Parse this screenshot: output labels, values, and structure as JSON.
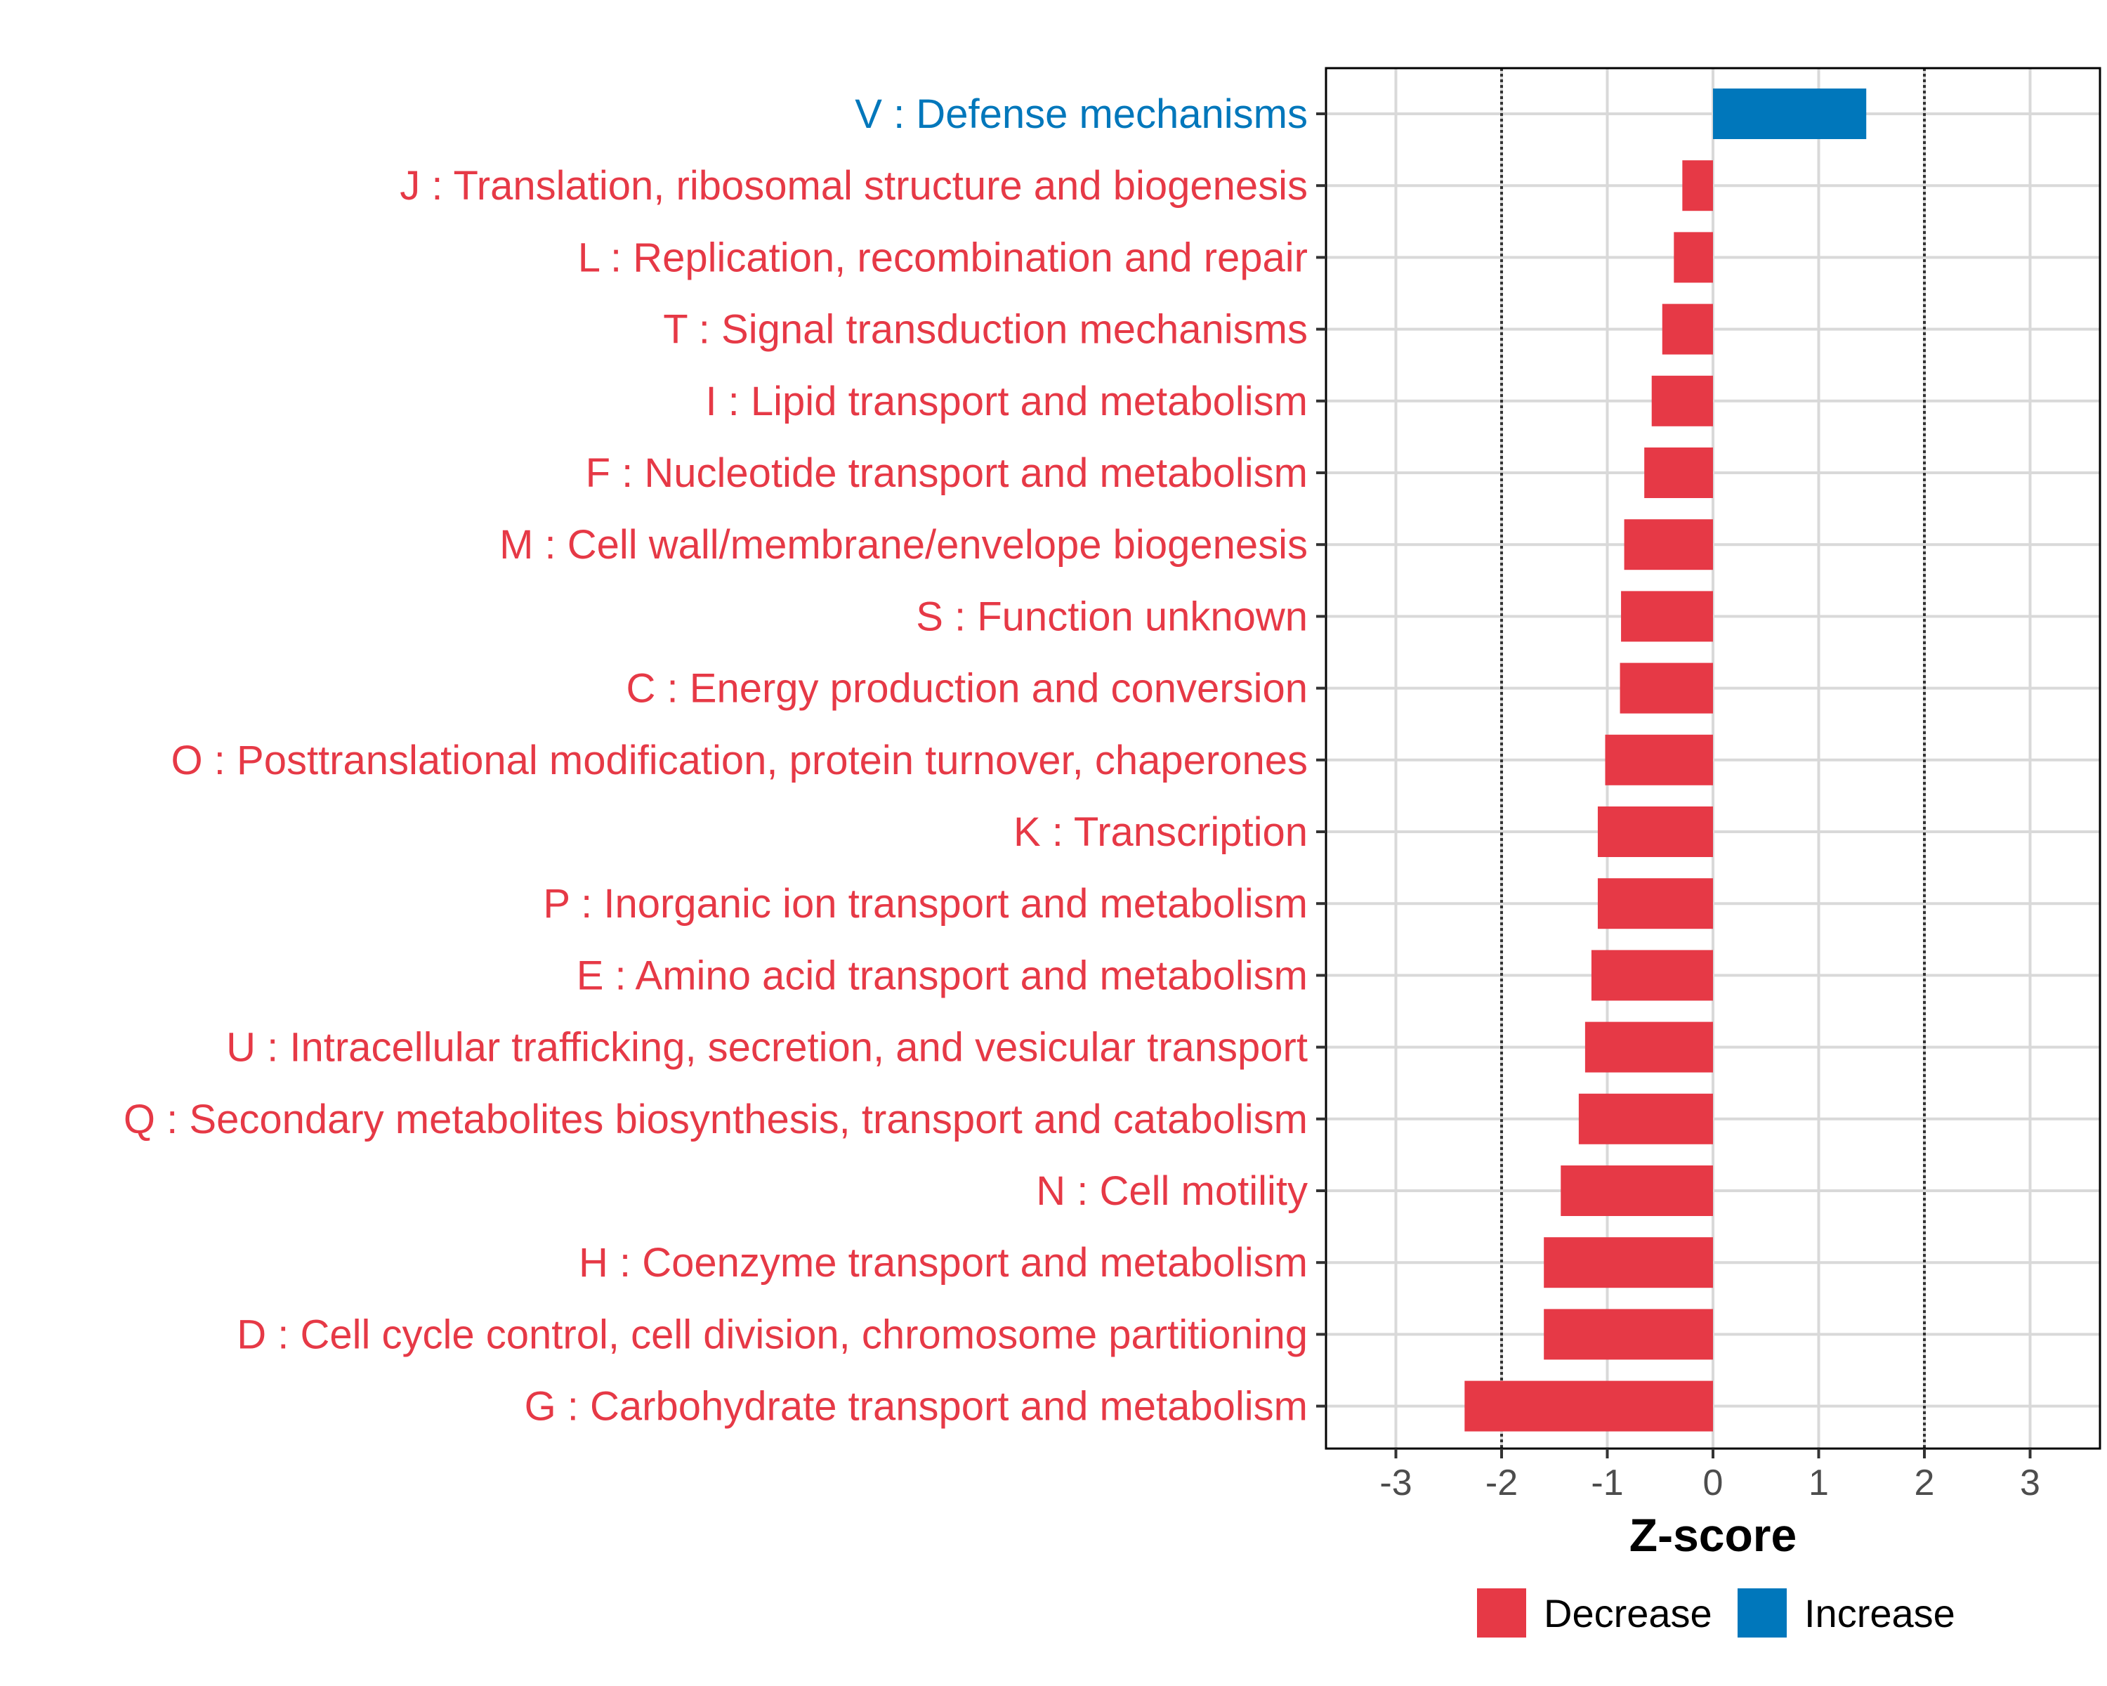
{
  "chart_data": {
    "type": "bar",
    "orientation": "horizontal",
    "title": "",
    "xlabel": "Z-score",
    "ylabel": "",
    "xlim": [
      -3.7,
      3.7
    ],
    "xticks": [
      -3,
      -2,
      -1,
      0,
      1,
      2,
      3
    ],
    "xtick_labels": [
      "-3",
      "-2",
      "-1",
      "0",
      "1",
      "2",
      "3"
    ],
    "threshold_lines": [
      -2,
      2
    ],
    "grid": true,
    "legend_position": "bottom",
    "colors": {
      "Decrease": "#e63946",
      "Increase": "#0077bb"
    },
    "categories": [
      "V : Defense mechanisms",
      "J : Translation, ribosomal structure and biogenesis",
      "L : Replication, recombination and repair",
      "T : Signal transduction mechanisms",
      "I : Lipid transport and metabolism",
      "F : Nucleotide transport and metabolism",
      "M : Cell wall/membrane/envelope biogenesis",
      "S : Function unknown",
      "C : Energy production and conversion",
      "O : Posttranslational modification, protein turnover, chaperones",
      "K : Transcription",
      "P : Inorganic ion transport and metabolism",
      "E : Amino acid transport and metabolism",
      "U : Intracellular trafficking, secretion, and vesicular transport",
      "Q : Secondary metabolites biosynthesis, transport and catabolism",
      "N : Cell motility",
      "H : Coenzyme transport and metabolism",
      "D : Cell cycle control, cell division, chromosome partitioning",
      "G : Carbohydrate transport and metabolism"
    ],
    "values": [
      1.45,
      -0.29,
      -0.37,
      -0.48,
      -0.58,
      -0.65,
      -0.84,
      -0.87,
      -0.88,
      -1.02,
      -1.09,
      -1.09,
      -1.15,
      -1.21,
      -1.27,
      -1.44,
      -1.6,
      -1.6,
      -2.35
    ],
    "series_group": [
      "Increase",
      "Decrease",
      "Decrease",
      "Decrease",
      "Decrease",
      "Decrease",
      "Decrease",
      "Decrease",
      "Decrease",
      "Decrease",
      "Decrease",
      "Decrease",
      "Decrease",
      "Decrease",
      "Decrease",
      "Decrease",
      "Decrease",
      "Decrease",
      "Decrease"
    ],
    "legend": [
      "Decrease",
      "Increase"
    ]
  }
}
